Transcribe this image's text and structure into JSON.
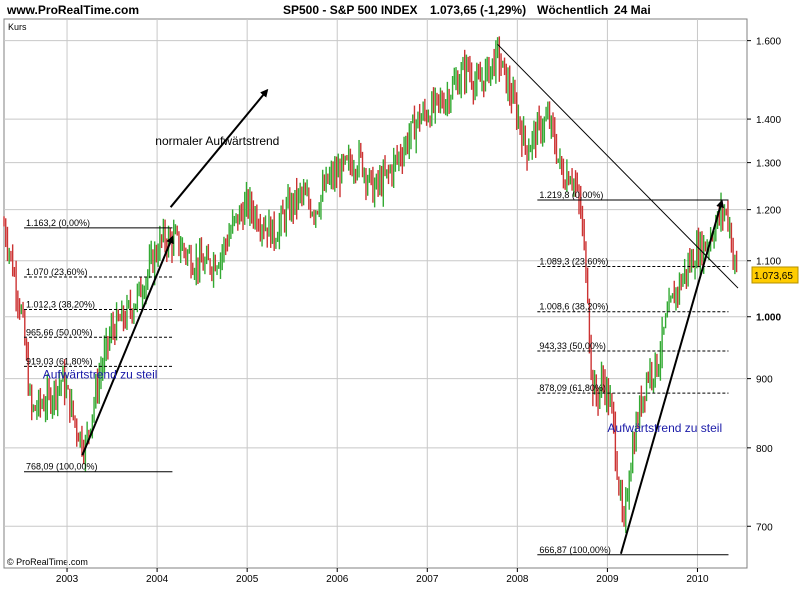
{
  "header": {
    "site": "www.ProRealTime.com",
    "instrument": "SP500 - S&P 500 INDEX",
    "price": "1.073,65 (-1,29%)",
    "interval": "Wöchentlich",
    "date": "24 Mai"
  },
  "ylabel": "Kurs",
  "copyright": "© ProRealTime.com",
  "price_badge": "1.073,65",
  "colors": {
    "up": "#33aa33",
    "down": "#cc3333",
    "badge": "#ffcc00",
    "annotation": "#1a1aa8",
    "grid": "#c8c8c8"
  },
  "chart_data": {
    "type": "candlestick",
    "y_scale": "log",
    "ylim": [
      652,
      1660
    ],
    "xlim": [
      2002.3,
      2010.55
    ],
    "y_ticks": [
      {
        "value": 700,
        "label": "700"
      },
      {
        "value": 800,
        "label": "800"
      },
      {
        "value": 900,
        "label": "900"
      },
      {
        "value": 1000,
        "label": "1.000"
      },
      {
        "value": 1100,
        "label": "1.100"
      },
      {
        "value": 1200,
        "label": "1.200"
      },
      {
        "value": 1300,
        "label": "1.300"
      },
      {
        "value": 1400,
        "label": "1.400"
      },
      {
        "value": 1600,
        "label": "1.600"
      }
    ],
    "x_ticks": [
      {
        "value": 2003,
        "label": "2003"
      },
      {
        "value": 2004,
        "label": "2004"
      },
      {
        "value": 2005,
        "label": "2005"
      },
      {
        "value": 2006,
        "label": "2006"
      },
      {
        "value": 2007,
        "label": "2007"
      },
      {
        "value": 2008,
        "label": "2008"
      },
      {
        "value": 2009,
        "label": "2009"
      },
      {
        "value": 2010,
        "label": "2010"
      }
    ],
    "price_path": [
      [
        2002.3,
        1170
      ],
      [
        2002.5,
        1000
      ],
      [
        2002.6,
        850
      ],
      [
        2002.8,
        870
      ],
      [
        2002.95,
        900
      ],
      [
        2003.1,
        830
      ],
      [
        2003.2,
        800
      ],
      [
        2003.35,
        900
      ],
      [
        2003.5,
        980
      ],
      [
        2003.65,
        1000
      ],
      [
        2003.8,
        1040
      ],
      [
        2003.95,
        1100
      ],
      [
        2004.05,
        1140
      ],
      [
        2004.2,
        1140
      ],
      [
        2004.4,
        1100
      ],
      [
        2004.55,
        1090
      ],
      [
        2004.7,
        1110
      ],
      [
        2004.85,
        1170
      ],
      [
        2005.0,
        1210
      ],
      [
        2005.15,
        1180
      ],
      [
        2005.3,
        1150
      ],
      [
        2005.45,
        1200
      ],
      [
        2005.6,
        1230
      ],
      [
        2005.75,
        1200
      ],
      [
        2005.9,
        1260
      ],
      [
        2006.1,
        1290
      ],
      [
        2006.25,
        1310
      ],
      [
        2006.4,
        1240
      ],
      [
        2006.55,
        1270
      ],
      [
        2006.7,
        1320
      ],
      [
        2006.9,
        1400
      ],
      [
        2007.1,
        1430
      ],
      [
        2007.2,
        1450
      ],
      [
        2007.35,
        1500
      ],
      [
        2007.45,
        1530
      ],
      [
        2007.55,
        1480
      ],
      [
        2007.65,
        1510
      ],
      [
        2007.78,
        1560
      ],
      [
        2007.9,
        1480
      ],
      [
        2008.0,
        1410
      ],
      [
        2008.1,
        1330
      ],
      [
        2008.25,
        1380
      ],
      [
        2008.35,
        1400
      ],
      [
        2008.5,
        1270
      ],
      [
        2008.6,
        1280
      ],
      [
        2008.7,
        1200
      ],
      [
        2008.78,
        1050
      ],
      [
        2008.82,
        900
      ],
      [
        2008.88,
        870
      ],
      [
        2008.95,
        900
      ],
      [
        2009.05,
        850
      ],
      [
        2009.12,
        760
      ],
      [
        2009.18,
        690
      ],
      [
        2009.25,
        780
      ],
      [
        2009.35,
        850
      ],
      [
        2009.45,
        910
      ],
      [
        2009.55,
        920
      ],
      [
        2009.65,
        990
      ],
      [
        2009.75,
        1040
      ],
      [
        2009.9,
        1090
      ],
      [
        2010.0,
        1120
      ],
      [
        2010.1,
        1130
      ],
      [
        2010.2,
        1170
      ],
      [
        2010.3,
        1200
      ],
      [
        2010.35,
        1180
      ],
      [
        2010.4,
        1100
      ],
      [
        2010.45,
        1073.65
      ]
    ],
    "current_price": 1073.65,
    "fibonacci": [
      {
        "x_range": [
          2002.3,
          2004.17
        ],
        "levels": [
          {
            "value": 1163.2,
            "label": "1.163,2 (0,00%)",
            "style": "solid"
          },
          {
            "value": 1070,
            "label": "1.070 (23,60%)",
            "style": "dashed"
          },
          {
            "value": 1012.3,
            "label": "1.012,3 (38,20%)",
            "style": "dashed"
          },
          {
            "value": 965.66,
            "label": "965,66 (50,00%)",
            "style": "dashed"
          },
          {
            "value": 919.03,
            "label": "919,03 (61,80%)",
            "style": "dashed"
          },
          {
            "value": 768.09,
            "label": "768,09 (100,00%)",
            "style": "solid"
          }
        ]
      },
      {
        "x_range": [
          2008.0,
          2010.3
        ],
        "levels": [
          {
            "value": 1219.8,
            "label": "1.219,8 (0,00%)",
            "style": "solid"
          },
          {
            "value": 1089.3,
            "label": "1.089,3 (23,60%)",
            "style": "dashed"
          },
          {
            "value": 1008.6,
            "label": "1.008,6 (38,20%)",
            "style": "dashed"
          },
          {
            "value": 943.33,
            "label": "943,33 (50,00%)",
            "style": "dashed"
          },
          {
            "value": 878.09,
            "label": "878,09 (61,80%)",
            "style": "dashed"
          },
          {
            "value": 666.87,
            "label": "666,87 (100,00%)",
            "style": "solid"
          }
        ]
      }
    ],
    "trendlines": [
      {
        "from": [
          2007.78,
          1590
        ],
        "to": [
          2010.45,
          1050
        ],
        "arrow": false
      }
    ],
    "arrows": [
      {
        "from": [
          2003.17,
          790
        ],
        "to": [
          2004.17,
          1145
        ]
      },
      {
        "from": [
          2004.15,
          1205
        ],
        "to": [
          2005.22,
          1470
        ]
      },
      {
        "from": [
          2009.15,
          668
        ],
        "to": [
          2010.27,
          1217
        ]
      }
    ],
    "annotations": [
      {
        "text": "normaler Aufwärtstrend",
        "x": 2003.98,
        "y": 1340,
        "color": "#000000"
      },
      {
        "text": "Aufwärtstrend zu steil",
        "x": 2002.73,
        "y": 900,
        "color": "#1a1aa8"
      },
      {
        "text": "Aufwärtstrend zu steil",
        "x": 2009.0,
        "y": 822,
        "color": "#1a1aa8"
      }
    ]
  }
}
